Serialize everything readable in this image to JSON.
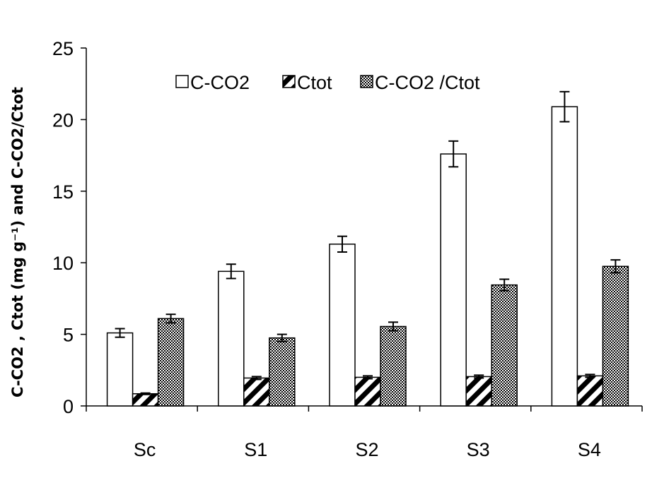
{
  "chart_data": {
    "type": "bar",
    "title": "",
    "xlabel": "",
    "ylabel": "C-CO2 , Ctot (mg g⁻¹) and C-CO2/Ctot",
    "ylim": [
      0,
      25
    ],
    "yticks": [
      0,
      5,
      10,
      15,
      20,
      25
    ],
    "categories": [
      "Sc",
      "S1",
      "S2",
      "S3",
      "S4"
    ],
    "legend_position": "top",
    "grid": false,
    "series": [
      {
        "name": "C-CO2",
        "values": [
          5.1,
          9.4,
          11.3,
          17.6,
          20.9
        ],
        "errors": [
          0.3,
          0.5,
          0.55,
          0.9,
          1.05
        ],
        "fill": "white"
      },
      {
        "name": "Ctot",
        "values": [
          0.85,
          1.95,
          2.0,
          2.05,
          2.1
        ],
        "errors": [
          0.05,
          0.1,
          0.1,
          0.1,
          0.1
        ],
        "fill": "diagonal-stripes"
      },
      {
        "name": "C-CO2 /Ctot",
        "values": [
          6.1,
          4.75,
          5.55,
          8.45,
          9.75
        ],
        "errors": [
          0.3,
          0.25,
          0.3,
          0.4,
          0.45
        ],
        "fill": "checker"
      }
    ],
    "colors": {
      "stroke": "#000000",
      "background": "#ffffff"
    }
  }
}
